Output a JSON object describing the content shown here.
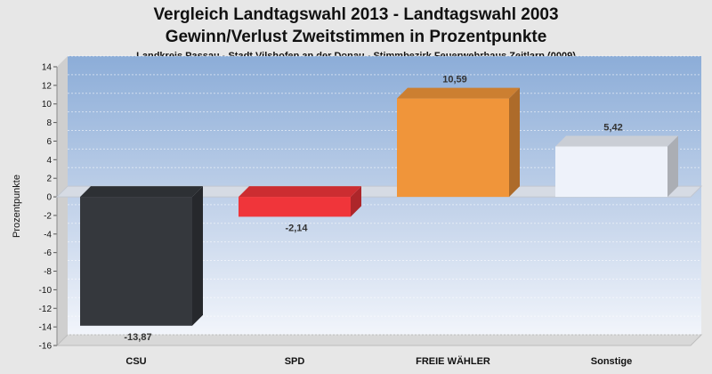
{
  "chart_data": {
    "type": "bar",
    "title": "Vergleich Landtagswahl 2013 - Landtagswahl 2003",
    "subtitle": "Gewinn/Verlust Zweitstimmen in Prozentpunkte",
    "subtitle2": "Landkreis Passau - Stadt Vilshofen an der Donau - Stimmbezirk Feuerwehrhaus Zeitlarn (0009)",
    "ylabel": "Prozentpunkte",
    "ylim": [
      -16,
      14
    ],
    "yticks": [
      14,
      12,
      10,
      8,
      6,
      4,
      2,
      0,
      -2,
      -4,
      -6,
      -8,
      -10,
      -12,
      -14,
      -16
    ],
    "categories": [
      "CSU",
      "SPD",
      "FREIE WÄHLER",
      "Sonstige"
    ],
    "values": [
      -13.87,
      -2.14,
      10.59,
      5.42
    ],
    "value_labels": [
      "-13,87",
      "-2,14",
      "10,59",
      "5,42"
    ],
    "colors": [
      "#35383d",
      "#f0353a",
      "#f0953a",
      "#eef2fa"
    ],
    "grid": true,
    "legend": "none"
  }
}
